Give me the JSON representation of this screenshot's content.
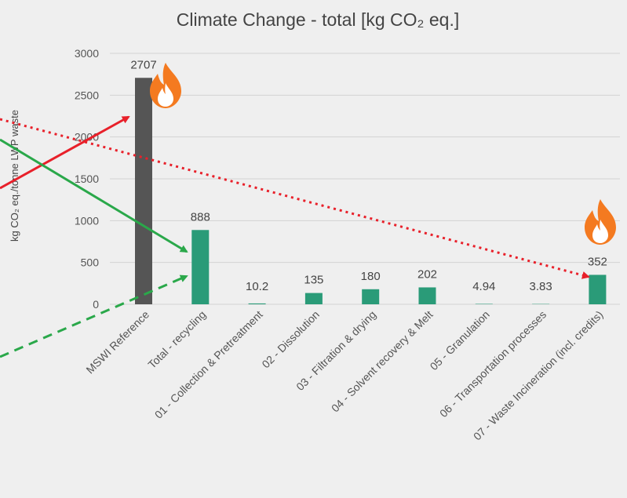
{
  "chart_data": {
    "type": "bar",
    "title": "Climate Change - total [kg CO₂ eq.]",
    "ylabel": "kg CO₂ eq./tonne LWP waste",
    "ylim": [
      0,
      3000
    ],
    "yticks": [
      0,
      500,
      1000,
      1500,
      2000,
      2500,
      3000
    ],
    "grid": true,
    "categories": [
      "MSWI Reference",
      "Total - recycling",
      "01 - Collection & Pretreatment",
      "02 - Dissolution",
      "03 - Filtration & drying",
      "04 - Solvent recovery & Melt",
      "05 - Granulation",
      "06 - Transportation processes",
      "07 - Waste Incineration (incl. credits)"
    ],
    "values": [
      2707,
      888,
      10.2,
      135,
      180,
      202,
      4.94,
      3.83,
      352
    ],
    "value_labels": [
      "2707",
      "888",
      "10.2",
      "135",
      "180",
      "202",
      "4.94",
      "3.83",
      "352"
    ],
    "colors": {
      "reference_bar": "#555555",
      "recycling_bar": "#2a9b78",
      "arrow_red": "#e8202a",
      "arrow_green": "#2aa84a",
      "flame_outer": "#f47a20",
      "flame_inner": "#ffffff"
    },
    "annotations": [
      {
        "type": "arrow",
        "style": "solid",
        "color": "red",
        "target": "MSWI Reference"
      },
      {
        "type": "arrow",
        "style": "dotted",
        "color": "red",
        "target": "07 - Waste Incineration (incl. credits)"
      },
      {
        "type": "arrow",
        "style": "solid",
        "color": "green",
        "target": "Total - recycling"
      },
      {
        "type": "arrow",
        "style": "dashed",
        "color": "green",
        "target": "Total - recycling"
      },
      {
        "type": "icon",
        "name": "flame-icon",
        "near": "MSWI Reference"
      },
      {
        "type": "icon",
        "name": "flame-icon",
        "near": "07 - Waste Incineration (incl. credits)"
      }
    ]
  }
}
